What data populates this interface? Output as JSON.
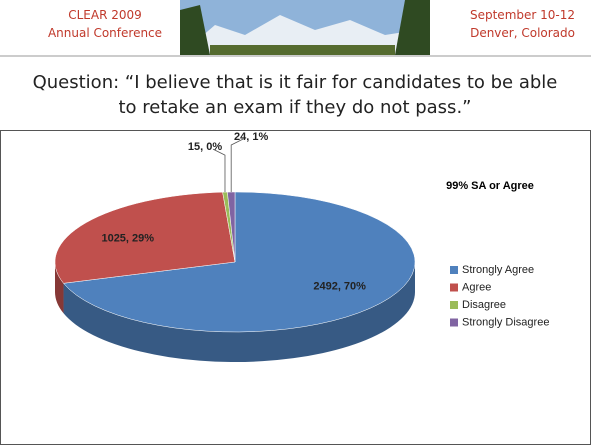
{
  "header": {
    "left": [
      "CLEAR 2009",
      "Annual Conference"
    ],
    "right": [
      "September 10-12",
      "Denver, Colorado"
    ]
  },
  "chart_data": {
    "type": "pie",
    "title": "Question: “I believe that is it fair for candidates to be able to retake an exam if they do not pass.”",
    "annotation": "99% SA or Agree",
    "categories": [
      "Strongly Agree",
      "Agree",
      "Disagree",
      "Strongly Disagree"
    ],
    "values": [
      2492,
      1025,
      15,
      24
    ],
    "value_labels": [
      "2492, 70%",
      "1025, 29%",
      "15, 0%",
      "24, 1%"
    ],
    "colors": [
      "#4f81bd",
      "#c0504d",
      "#9bbb59",
      "#8064a2"
    ],
    "legend": "right"
  }
}
